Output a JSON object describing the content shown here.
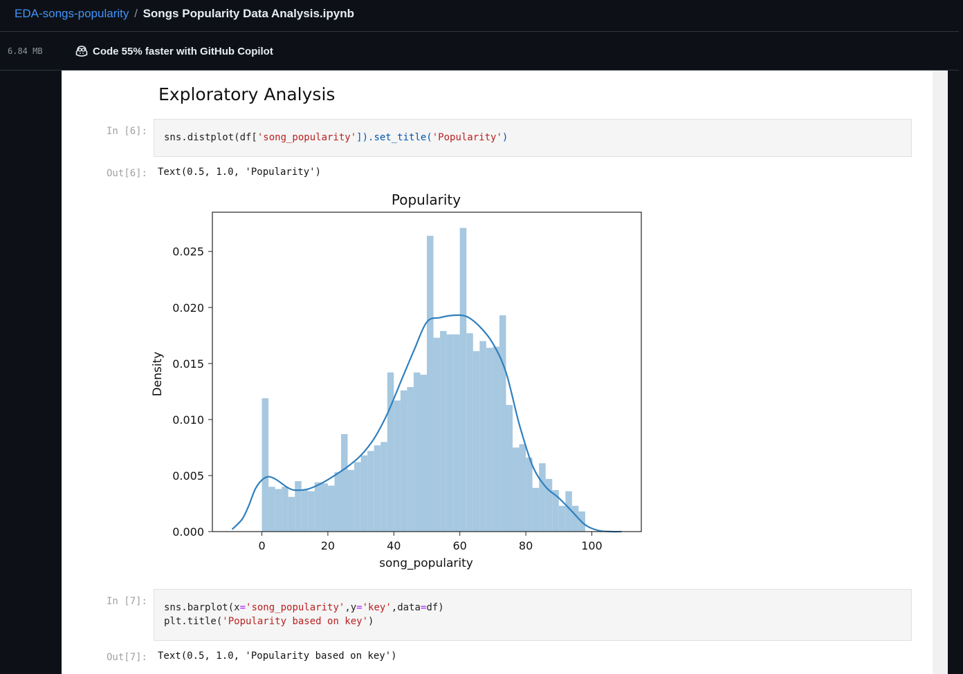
{
  "breadcrumb": {
    "repo": "EDA-songs-popularity",
    "separator": "/",
    "file": "Songs Popularity Data Analysis.ipynb"
  },
  "toolbar": {
    "file_size": "6.84 MB",
    "copilot_text": "Code 55% faster with GitHub Copilot",
    "copilot_icon": "copilot-icon"
  },
  "notebook": {
    "heading": "Exploratory Analysis",
    "cells": [
      {
        "in_prompt": "In [6]:",
        "code": "sns.distplot(df['song_popularity']).set_title('Popularity')",
        "out_prompt": "Out[6]:",
        "output_text": "Text(0.5, 1.0, 'Popularity')"
      },
      {
        "in_prompt": "In [7]:",
        "code_line1": "sns.barplot(x='song_popularity',y='key',data=df)",
        "code_line2": "plt.title('Popularity based on key')",
        "out_prompt": "Out[7]:",
        "output_text": "Text(0.5, 1.0, 'Popularity based on key')"
      }
    ]
  },
  "colors": {
    "repo_link": "#4493f8",
    "histogram_fill": "#a6c8e0",
    "kde_line": "#2f7fbd"
  },
  "chart_data": {
    "type": "bar",
    "title": "Popularity",
    "xlabel": "song_popularity",
    "ylabel": "Density",
    "xlim": [
      -15,
      115
    ],
    "ylim": [
      0,
      0.0285
    ],
    "xticks": [
      0,
      20,
      40,
      60,
      80,
      100
    ],
    "yticks": [
      "0.000",
      "0.005",
      "0.010",
      "0.015",
      "0.020",
      "0.025"
    ],
    "bin_width": 2,
    "histogram": {
      "x": [
        0,
        2,
        4,
        6,
        8,
        10,
        12,
        14,
        16,
        18,
        20,
        22,
        24,
        26,
        28,
        30,
        32,
        34,
        36,
        38,
        40,
        42,
        44,
        46,
        48,
        50,
        52,
        54,
        56,
        58,
        60,
        62,
        64,
        66,
        68,
        70,
        72,
        74,
        76,
        78,
        80,
        82,
        84,
        86,
        88,
        90,
        92,
        94,
        96,
        98
      ],
      "values": [
        0.0119,
        0.004,
        0.0038,
        0.004,
        0.0031,
        0.0045,
        0.0037,
        0.0036,
        0.0044,
        0.0043,
        0.0041,
        0.0053,
        0.0087,
        0.0055,
        0.0062,
        0.0068,
        0.0072,
        0.0077,
        0.008,
        0.0142,
        0.0117,
        0.0126,
        0.0129,
        0.0142,
        0.014,
        0.0264,
        0.0173,
        0.0179,
        0.0176,
        0.0176,
        0.0271,
        0.0177,
        0.0161,
        0.017,
        0.0164,
        0.0165,
        0.0193,
        0.0113,
        0.0075,
        0.0078,
        0.0066,
        0.0039,
        0.0061,
        0.0047,
        0.0037,
        0.0023,
        0.0036,
        0.0023,
        0.0018,
        0.0
      ]
    },
    "kde": {
      "x": [
        -9,
        -6,
        -4,
        -2,
        0,
        2,
        4,
        6,
        8,
        10,
        14,
        18,
        22,
        26,
        30,
        34,
        38,
        42,
        46,
        50,
        54,
        58,
        62,
        66,
        70,
        74,
        78,
        82,
        86,
        90,
        94,
        98,
        102,
        106,
        109
      ],
      "y": [
        0.0002,
        0.0011,
        0.0023,
        0.0038,
        0.0046,
        0.0049,
        0.0047,
        0.0043,
        0.0039,
        0.0037,
        0.0038,
        0.0043,
        0.005,
        0.0058,
        0.0068,
        0.0083,
        0.0105,
        0.0133,
        0.0161,
        0.0187,
        0.0191,
        0.0193,
        0.0192,
        0.0183,
        0.0168,
        0.0142,
        0.0096,
        0.0059,
        0.004,
        0.003,
        0.0018,
        0.0006,
        0.0001,
        0.0,
        0.0
      ]
    },
    "grid": false,
    "legend": "none"
  }
}
